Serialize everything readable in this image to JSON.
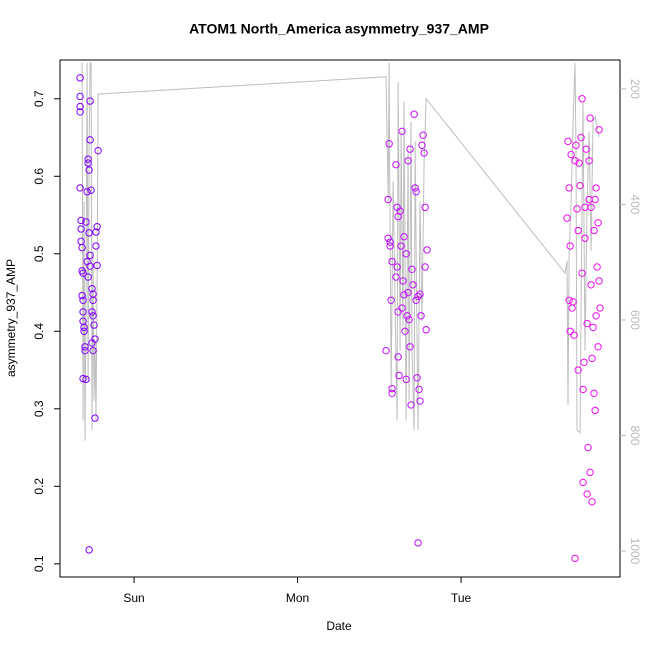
{
  "chart_data": {
    "type": "scatter",
    "title": "ATOM1 North_America asymmetry_937_AMP",
    "x_label": "Date",
    "y_label": "asymmetry_937_AMP",
    "xlim": [
      -0.453,
      2.972
    ],
    "xticks": [
      {
        "value": 0,
        "label": "Sun"
      },
      {
        "value": 1,
        "label": "Mon"
      },
      {
        "value": 2,
        "label": "Tue"
      }
    ],
    "ylim": [
      0.083,
      0.75
    ],
    "yticks": [
      0.1,
      0.2,
      0.3,
      0.4,
      0.5,
      0.6,
      0.7
    ],
    "y2lim": [
      1045,
      150
    ],
    "y2ticks": [
      200,
      400,
      600,
      800,
      1000
    ],
    "series": [
      {
        "type": "line",
        "axis": "y2",
        "color": "#bebebe",
        "x": [
          -0.318,
          -0.312,
          -0.306,
          -0.3,
          -0.294,
          -0.287,
          -0.281,
          -0.275,
          -0.269,
          -0.263,
          -0.257,
          -0.251,
          -0.245,
          -0.239,
          -0.233,
          -0.226,
          -0.22,
          1.541,
          1.554,
          1.56,
          1.572,
          1.584,
          1.596,
          1.609,
          1.615,
          1.627,
          1.633,
          1.645,
          1.651,
          1.664,
          1.676,
          1.682,
          1.694,
          1.7,
          1.713,
          1.719,
          1.731,
          1.737,
          1.749,
          1.761,
          1.774,
          1.786,
          2.636,
          2.648,
          2.654,
          2.661,
          2.673,
          2.685,
          2.697,
          2.703,
          2.709,
          2.728,
          2.734,
          2.746,
          2.758,
          2.771,
          2.783,
          2.795,
          2.807,
          2.82,
          2.832,
          2.844
        ],
        "values": [
          155,
          774,
          395,
          809,
          567,
          155,
          705,
          309,
          155,
          155,
          791,
          481,
          740,
          636,
          774,
          533,
          209,
          179,
          395,
          155,
          722,
          360,
          567,
          774,
          188,
          653,
          274,
          619,
          222,
          774,
          309,
          740,
          257,
          653,
          791,
          291,
          653,
          791,
          395,
          602,
          326,
          217,
          519,
          498,
          748,
          481,
          395,
          257,
          155,
          309,
          791,
          795,
          567,
          222,
          653,
          395,
          274,
          481,
          257,
          248,
          266,
          283
        ]
      },
      {
        "type": "points",
        "color": "#8000ff",
        "x": [
          -0.33,
          -0.33,
          -0.33,
          -0.33,
          -0.33,
          -0.324,
          -0.324,
          -0.324,
          -0.318,
          -0.318,
          -0.312,
          -0.318,
          -0.312,
          -0.312,
          -0.312,
          -0.306,
          -0.306,
          -0.3,
          -0.312,
          -0.294,
          -0.294,
          -0.287,
          -0.281,
          -0.281,
          -0.275,
          -0.269,
          -0.269,
          -0.263,
          -0.275,
          -0.269,
          -0.269,
          -0.257,
          -0.251,
          -0.251,
          -0.257,
          -0.251,
          -0.245,
          -0.239,
          -0.251,
          -0.257,
          -0.233,
          -0.226,
          -0.233,
          -0.226,
          -0.22,
          -0.239,
          -0.275,
          -0.287,
          -0.281,
          -0.3
        ],
        "values": [
          0.727,
          0.703,
          0.69,
          0.683,
          0.585,
          0.543,
          0.532,
          0.516,
          0.508,
          0.478,
          0.475,
          0.446,
          0.44,
          0.425,
          0.413,
          0.405,
          0.4,
          0.38,
          0.339,
          0.338,
          0.541,
          0.58,
          0.622,
          0.617,
          0.608,
          0.697,
          0.647,
          0.582,
          0.527,
          0.498,
          0.484,
          0.455,
          0.448,
          0.44,
          0.425,
          0.42,
          0.408,
          0.39,
          0.375,
          0.385,
          0.528,
          0.535,
          0.51,
          0.485,
          0.633,
          0.288,
          0.118,
          0.49,
          0.47,
          0.375
        ]
      },
      {
        "type": "points",
        "color": "#c010ff",
        "x": [
          1.541,
          1.554,
          1.554,
          1.56,
          1.566,
          1.566,
          1.578,
          1.572,
          1.578,
          1.578,
          1.602,
          1.609,
          1.615,
          1.609,
          1.615,
          1.615,
          1.621,
          1.627,
          1.633,
          1.639,
          1.639,
          1.645,
          1.651,
          1.651,
          1.657,
          1.664,
          1.67,
          1.676,
          1.676,
          1.682,
          1.688,
          1.688,
          1.694,
          1.7,
          1.706,
          1.713,
          1.719,
          1.725,
          1.725,
          1.731,
          1.737,
          1.743,
          1.749,
          1.755,
          1.761,
          1.768,
          1.774,
          1.78,
          1.78,
          1.786,
          1.792,
          1.737,
          1.749,
          1.602,
          1.664
        ],
        "values": [
          0.375,
          0.57,
          0.52,
          0.642,
          0.515,
          0.51,
          0.49,
          0.44,
          0.326,
          0.32,
          0.615,
          0.56,
          0.548,
          0.483,
          0.425,
          0.367,
          0.343,
          0.555,
          0.51,
          0.658,
          0.43,
          0.465,
          0.522,
          0.447,
          0.4,
          0.338,
          0.42,
          0.62,
          0.45,
          0.415,
          0.635,
          0.38,
          0.305,
          0.48,
          0.46,
          0.68,
          0.585,
          0.58,
          0.44,
          0.34,
          0.127,
          0.325,
          0.31,
          0.42,
          0.64,
          0.653,
          0.63,
          0.56,
          0.483,
          0.402,
          0.505,
          0.445,
          0.448,
          0.47,
          0.5
        ]
      },
      {
        "type": "points",
        "color": "#ee10ee",
        "x": [
          2.648,
          2.654,
          2.661,
          2.667,
          2.673,
          2.661,
          2.667,
          2.679,
          2.685,
          2.691,
          2.697,
          2.697,
          2.703,
          2.709,
          2.716,
          2.716,
          2.722,
          2.728,
          2.734,
          2.74,
          2.74,
          2.746,
          2.746,
          2.752,
          2.758,
          2.758,
          2.765,
          2.771,
          2.771,
          2.777,
          2.783,
          2.783,
          2.789,
          2.789,
          2.795,
          2.795,
          2.801,
          2.801,
          2.807,
          2.813,
          2.813,
          2.82,
          2.82,
          2.826,
          2.826,
          2.832,
          2.838,
          2.838,
          2.844,
          2.844,
          2.85
        ],
        "values": [
          0.546,
          0.645,
          0.585,
          0.51,
          0.628,
          0.44,
          0.4,
          0.43,
          0.438,
          0.395,
          0.107,
          0.62,
          0.64,
          0.558,
          0.53,
          0.35,
          0.617,
          0.588,
          0.65,
          0.7,
          0.475,
          0.325,
          0.205,
          0.36,
          0.56,
          0.52,
          0.635,
          0.41,
          0.19,
          0.25,
          0.62,
          0.57,
          0.218,
          0.675,
          0.56,
          0.46,
          0.365,
          0.18,
          0.405,
          0.53,
          0.32,
          0.57,
          0.298,
          0.585,
          0.42,
          0.483,
          0.54,
          0.38,
          0.465,
          0.66,
          0.43
        ]
      }
    ]
  }
}
